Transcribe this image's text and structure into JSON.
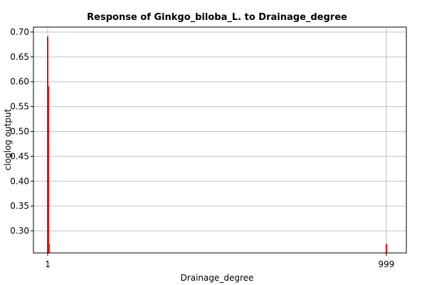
{
  "chart_data": {
    "type": "bar",
    "title": "Response of Ginkgo_biloba_L. to Drainage_degree",
    "x_label": "Drainage_degree",
    "y_label": "cloglog output",
    "x": [
      1,
      3,
      5,
      999
    ],
    "values": [
      0.691,
      0.591,
      0.274,
      0.274
    ],
    "color": "#ff0000",
    "xlim": [
      -41,
      1058
    ],
    "xticks": [
      1,
      999
    ],
    "ylim": [
      0.2556,
      0.71
    ],
    "yticks": [
      {
        "value": 0.3,
        "label": "0.30"
      },
      0.35,
      {
        "value": 0.4,
        "label": "0.40"
      },
      0.45,
      {
        "value": 0.5,
        "label": "0.50"
      },
      0.55,
      {
        "value": 0.6,
        "label": "0.60"
      },
      0.65,
      {
        "value": 0.7,
        "label": "0.70"
      }
    ],
    "grid": true
  }
}
